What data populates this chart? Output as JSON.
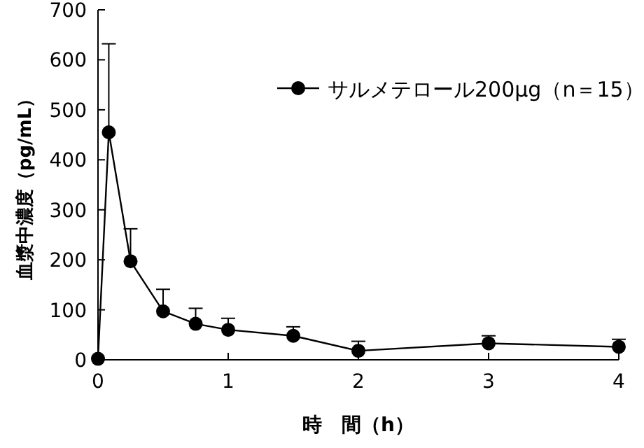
{
  "chart_data": {
    "type": "line",
    "xlabel": "時　間（h）",
    "ylabel": "血漿中濃度（pg/mL）",
    "xlim": [
      0,
      4
    ],
    "xticks": [
      0,
      1,
      2,
      3,
      4
    ],
    "ylim": [
      0,
      700
    ],
    "yticks": [
      0,
      100,
      200,
      300,
      400,
      500,
      600,
      700
    ],
    "x": [
      0,
      0.083,
      0.25,
      0.5,
      0.75,
      1,
      1.5,
      2,
      3,
      4
    ],
    "series": [
      {
        "name": "サルメテロール200μg（n＝15）",
        "color": "#000000",
        "values": [
          2,
          455,
          197,
          97,
          72,
          60,
          48,
          18,
          33,
          26
        ],
        "errors": [
          null,
          [
            455,
            632
          ],
          [
            197,
            262
          ],
          [
            97,
            141
          ],
          [
            72,
            103
          ],
          [
            60,
            83
          ],
          [
            48,
            66
          ],
          [
            18,
            37
          ],
          [
            33,
            48
          ],
          [
            26,
            41
          ]
        ]
      }
    ],
    "marker": "circle",
    "line_style": "solid",
    "legend": "top right",
    "grid": false
  }
}
